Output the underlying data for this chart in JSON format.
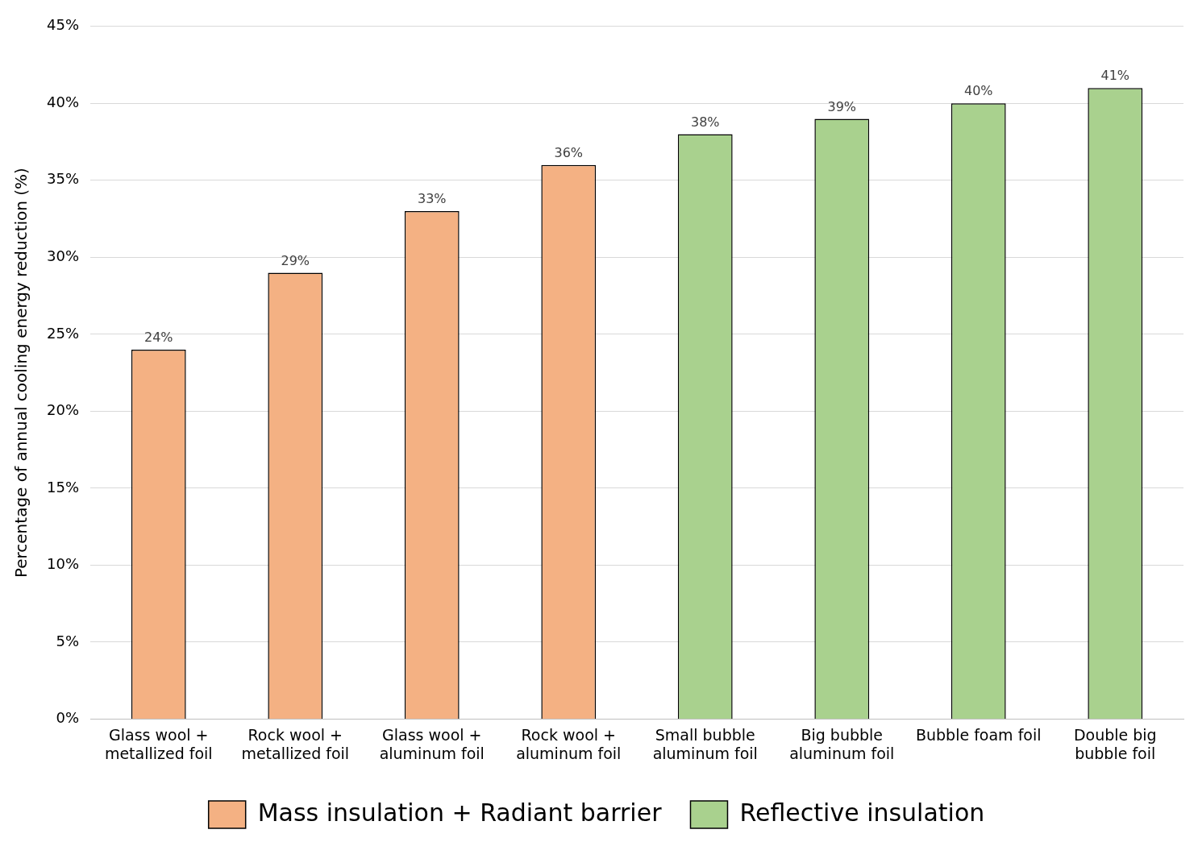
{
  "chart_data": {
    "type": "bar",
    "ylabel": "Percentage of annual cooling energy reduction (%)",
    "categories": [
      [
        "Glass wool +",
        "metallized foil"
      ],
      [
        "Rock wool +",
        "metallized foil"
      ],
      [
        "Glass wool +",
        "aluminum foil"
      ],
      [
        "Rock wool +",
        "aluminum foil"
      ],
      [
        "Small bubble",
        "aluminum foil"
      ],
      [
        "Big bubble",
        "aluminum foil"
      ],
      "Bubble foam foil",
      [
        "Double big",
        "bubble foil"
      ]
    ],
    "series": [
      {
        "name": "Mass insulation + Radiant barrier",
        "color": "#f4b183",
        "values": [
          24,
          29,
          33,
          36,
          null,
          null,
          null,
          null
        ],
        "value_labels": [
          "24%",
          "29%",
          "33%",
          "36%",
          null,
          null,
          null,
          null
        ]
      },
      {
        "name": "Reflective insulation",
        "color": "#a9d18e",
        "values": [
          null,
          null,
          null,
          null,
          38,
          39,
          40,
          41
        ],
        "value_labels": [
          null,
          null,
          null,
          null,
          "38%",
          "39%",
          "40%",
          "41%"
        ]
      }
    ],
    "ylim": [
      0,
      45
    ],
    "yticks": [
      {
        "value": 0,
        "label": "0%"
      },
      {
        "value": 5,
        "label": "5%"
      },
      {
        "value": 10,
        "label": "10%"
      },
      {
        "value": 15,
        "label": "15%"
      },
      {
        "value": 20,
        "label": "20%"
      },
      {
        "value": 25,
        "label": "25%"
      },
      {
        "value": 30,
        "label": "30%"
      },
      {
        "value": 35,
        "label": "35%"
      },
      {
        "value": 40,
        "label": "40%"
      },
      {
        "value": 45,
        "label": "45%"
      }
    ],
    "grid": "y",
    "legend": "bottom"
  }
}
